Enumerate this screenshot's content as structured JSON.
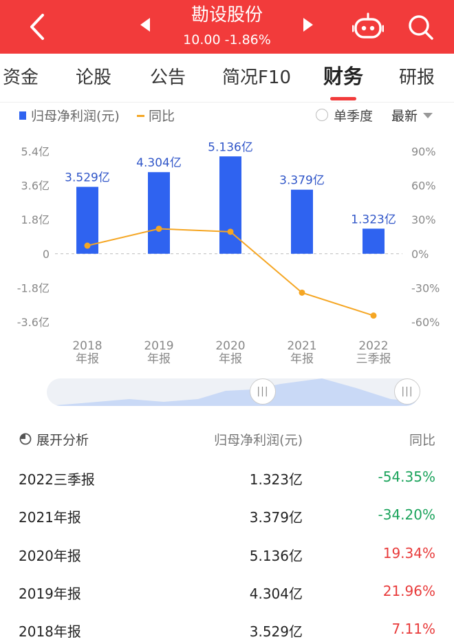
{
  "header": {
    "title": "勘设股份",
    "price_change": "10.00  -1.86%",
    "bg_color": "#f23b3b"
  },
  "tabs": [
    {
      "label": "资金"
    },
    {
      "label": "论股"
    },
    {
      "label": "公告"
    },
    {
      "label": "简况F10"
    },
    {
      "label": "财务"
    },
    {
      "label": "研报"
    }
  ],
  "legend": {
    "bar_label": "归母净利润(元)",
    "line_label": "同比",
    "radio_label": "单季度",
    "sort_label": "最新"
  },
  "chart_data": {
    "type": "bar",
    "categories": [
      [
        "2018",
        "年报"
      ],
      [
        "2019",
        "年报"
      ],
      [
        "2020",
        "年报"
      ],
      [
        "2021",
        "年报"
      ],
      [
        "2022",
        "三季报"
      ]
    ],
    "series": [
      {
        "name": "归母净利润(元)",
        "type": "bar",
        "values": [
          3.529,
          4.304,
          5.136,
          3.379,
          1.323
        ],
        "labels": [
          "3.529亿",
          "4.304亿",
          "5.136亿",
          "3.379亿",
          "1.323亿"
        ],
        "color": "#2f63f0"
      },
      {
        "name": "同比",
        "type": "line",
        "values": [
          7.11,
          21.96,
          19.34,
          -34.2,
          -54.35
        ],
        "color": "#f5a623"
      }
    ],
    "left_axis": {
      "ticks": [
        "5.4亿",
        "3.6亿",
        "1.8亿",
        "0",
        "-1.8亿",
        "-3.6亿"
      ],
      "values": [
        5.4,
        3.6,
        1.8,
        0,
        -1.8,
        -3.6
      ]
    },
    "right_axis": {
      "ticks": [
        "90%",
        "60%",
        "30%",
        "0%",
        "-30%",
        "-60%"
      ],
      "values": [
        90,
        60,
        30,
        0,
        -30,
        -60
      ]
    }
  },
  "table": {
    "header": {
      "label": "展开分析",
      "col2": "归母净利润(元)",
      "col3": "同比"
    },
    "rows": [
      {
        "period": "2022三季报",
        "value": "1.323亿",
        "yoy": "-54.35%",
        "trend": "neg"
      },
      {
        "period": "2021年报",
        "value": "3.379亿",
        "yoy": "-34.20%",
        "trend": "neg"
      },
      {
        "period": "2020年报",
        "value": "5.136亿",
        "yoy": "19.34%",
        "trend": "pos"
      },
      {
        "period": "2019年报",
        "value": "4.304亿",
        "yoy": "21.96%",
        "trend": "pos"
      },
      {
        "period": "2018年报",
        "value": "3.529亿",
        "yoy": "7.11%",
        "trend": "pos"
      }
    ]
  }
}
